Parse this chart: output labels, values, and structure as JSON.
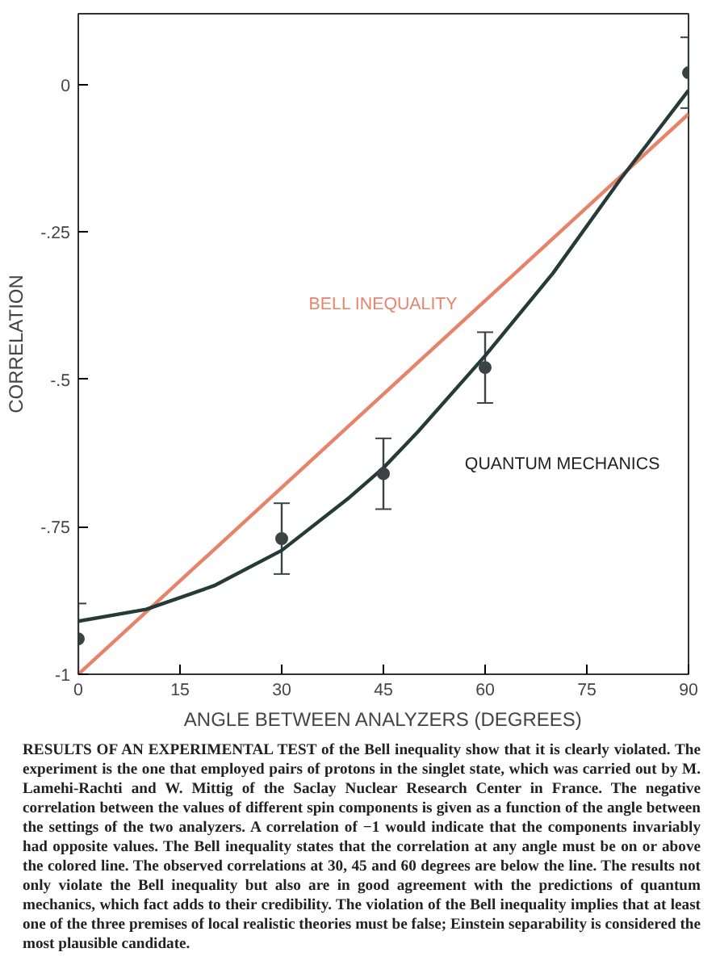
{
  "chart_data": {
    "type": "line",
    "xlabel": "ANGLE BETWEEN ANALYZERS (DEGREES)",
    "ylabel": "CORRELATION",
    "xlim": [
      0,
      90
    ],
    "ylim": [
      -1,
      0.12
    ],
    "xticks": [
      0,
      15,
      30,
      45,
      60,
      75,
      90
    ],
    "yticks": [
      {
        "value": -1,
        "label": "-1"
      },
      {
        "value": -0.75,
        "label": "-.75"
      },
      {
        "value": -0.5,
        "label": "-.5"
      },
      {
        "value": -0.25,
        "label": "-.25"
      },
      0
    ],
    "grid": false,
    "series": [
      {
        "name": "BELL INEQUALITY",
        "color": "#e8836b",
        "x": [
          0,
          90
        ],
        "values": [
          -1,
          -0.05
        ]
      },
      {
        "name": "QUANTUM MECHANICS",
        "color": "#263a3a",
        "x": [
          0,
          10,
          15,
          20,
          30,
          40,
          45,
          50,
          60,
          70,
          80,
          90
        ],
        "values": [
          -0.91,
          -0.89,
          -0.87,
          -0.85,
          -0.79,
          -0.7,
          -0.65,
          -0.59,
          -0.46,
          -0.32,
          -0.16,
          -0.01
        ]
      },
      {
        "type": "scatter",
        "marker": "circle",
        "color": "#3a4444",
        "x": [
          0,
          30,
          45,
          60,
          90
        ],
        "values": [
          -0.94,
          -0.77,
          -0.66,
          -0.48,
          0.02
        ],
        "errors": [
          0.06,
          0.06,
          0.06,
          0.06,
          0.06
        ]
      }
    ],
    "annotations": [
      "RESULTS OF AN EXPERIMENTAL TEST of the Bell inequality show that it is clearly violated. The experiment is the one that employed pairs of protons in the singlet state, which was carried out by M. Lamehi-Rachti and W. Mittig of the Saclay Nuclear Research Center in France. The negative correlation between the values of different spin components is given as a function of the angle between the settings of the two analyzers. A correlation of −1 would indicate that the components invariably had opposite values. The Bell inequality states that the correlation at any angle must be on or above the colored line. The observed correlations at 30, 45 and 60 degrees are below the line. The results not only violate the Bell inequality but also are in good agreement with the predictions of quantum mechanics, which fact adds to their credibility. The violation of the Bell inequality implies that at least one of the three premises of local realistic theories must be false; Einstein separability is considered the most plausible candidate."
    ]
  }
}
